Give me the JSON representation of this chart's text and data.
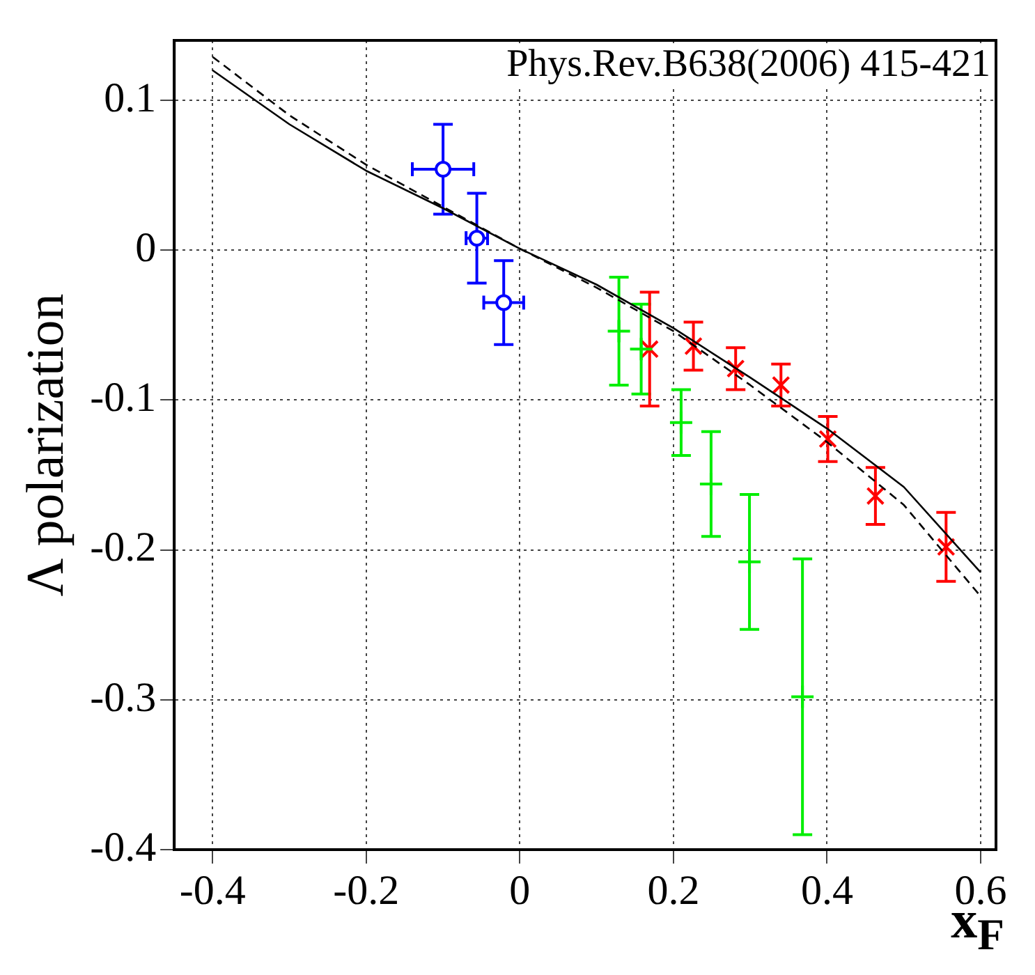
{
  "chart_data": {
    "type": "scatter",
    "xlabel": "x$_{F}$",
    "ylabel": "Λ polarization",
    "annotations": [
      "Phys.Rev.B638(2006) 415-421"
    ],
    "xlim": [
      -0.45,
      0.62
    ],
    "xticks": [
      -0.4,
      -0.2,
      0,
      0.2,
      0.4,
      0.6
    ],
    "ylim": [
      -0.4,
      0.14
    ],
    "yticks": [
      -0.4,
      -0.3,
      -0.2,
      -0.1,
      0,
      0.1
    ],
    "grid": true,
    "legend": false,
    "series": [
      {
        "type": "line",
        "color": "#000000",
        "line_style": "solid",
        "marker": "none",
        "x": [
          -0.4,
          -0.3,
          -0.2,
          -0.1,
          0,
          0.1,
          0.2,
          0.3,
          0.4,
          0.5,
          0.6
        ],
        "values": [
          0.12,
          0.084,
          0.053,
          0.028,
          0.001,
          -0.023,
          -0.052,
          -0.085,
          -0.119,
          -0.158,
          -0.215
        ]
      },
      {
        "type": "line",
        "color": "#000000",
        "line_style": "dashed",
        "marker": "none",
        "x": [
          -0.4,
          -0.3,
          -0.2,
          -0.1,
          0,
          0.1,
          0.2,
          0.3,
          0.4,
          0.5,
          0.6
        ],
        "values": [
          0.129,
          0.09,
          0.057,
          0.029,
          0.001,
          -0.025,
          -0.054,
          -0.09,
          -0.128,
          -0.17,
          -0.231
        ]
      },
      {
        "type": "scatter",
        "color": "#0000ff",
        "marker": "circle",
        "x": [
          -0.1,
          -0.056,
          -0.021
        ],
        "values": [
          0.054,
          0.008,
          -0.035
        ],
        "errors": [
          0.03,
          0.03,
          0.028
        ],
        "xerrors": [
          0.04,
          0.014,
          0.026
        ]
      },
      {
        "type": "scatter",
        "color": "#00ee00",
        "marker": "cross",
        "x": [
          0.129,
          0.158,
          0.21,
          0.249,
          0.299,
          0.368
        ],
        "values": [
          -0.054,
          -0.066,
          -0.115,
          -0.156,
          -0.208,
          -0.298
        ],
        "errors": [
          0.036,
          0.03,
          0.022,
          0.035,
          0.045,
          0.092
        ]
      },
      {
        "type": "scatter",
        "color": "#ff0000",
        "marker": "x",
        "x": [
          0.169,
          0.226,
          0.281,
          0.34,
          0.401,
          0.463,
          0.555
        ],
        "values": [
          -0.066,
          -0.064,
          -0.079,
          -0.09,
          -0.126,
          -0.164,
          -0.198
        ],
        "errors": [
          0.038,
          0.016,
          0.014,
          0.014,
          0.015,
          0.019,
          0.023
        ]
      }
    ]
  }
}
